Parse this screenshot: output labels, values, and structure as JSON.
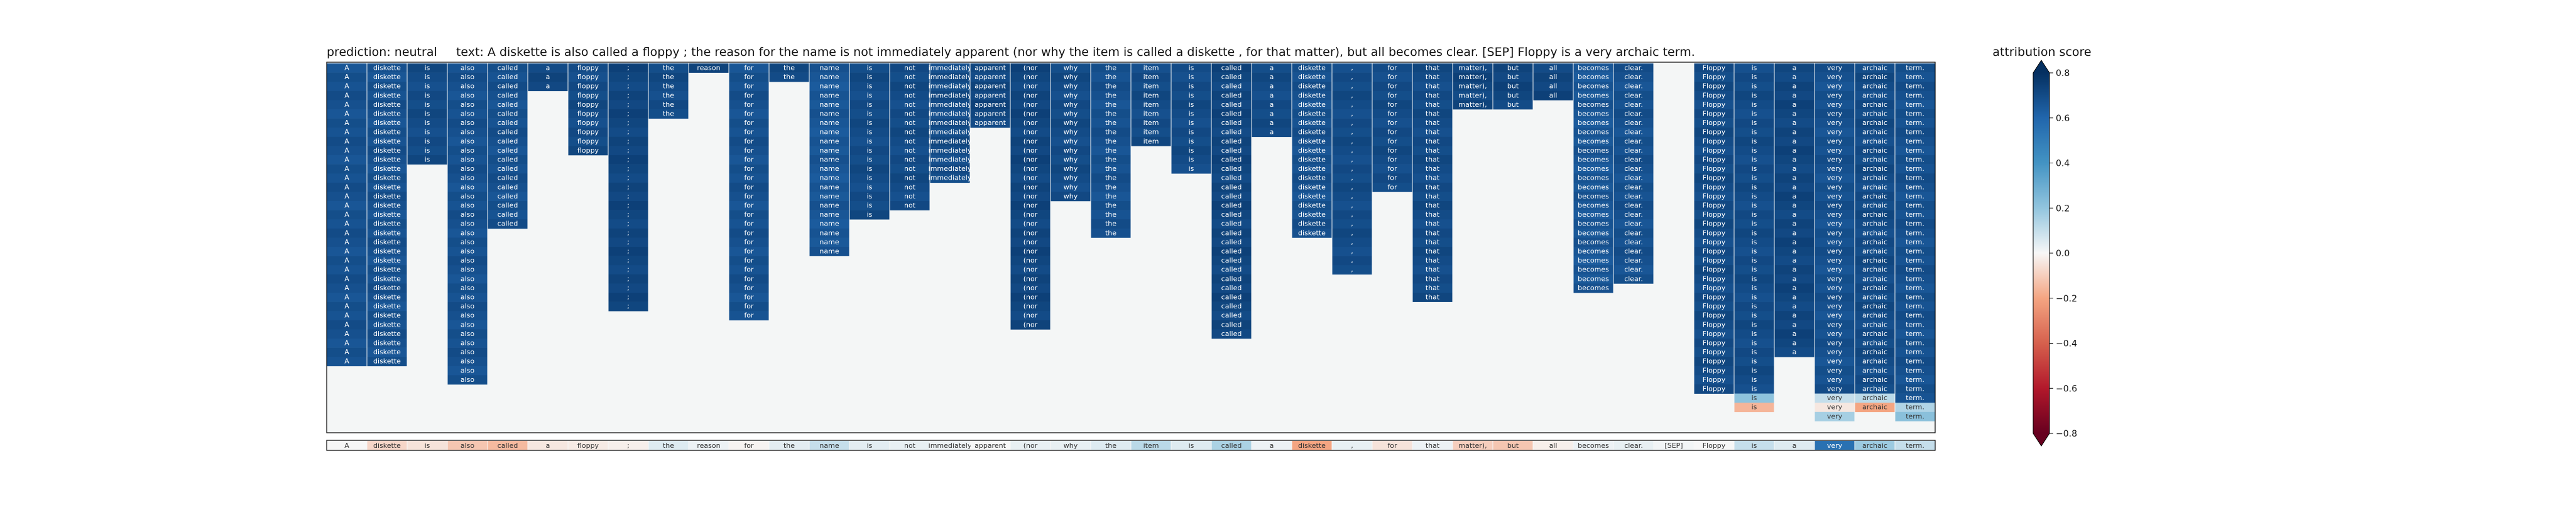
{
  "title": {
    "prediction_label": "prediction:",
    "prediction": "neutral",
    "text_label": "text:",
    "text": "A diskette is also called a floppy ; the reason for the name is not immediately apparent (nor why the item is called a diskette , for that matter), but all becomes clear. [SEP] Floppy is a very archaic term."
  },
  "colorbar": {
    "title": "attribution score",
    "ticks": [
      "0.8",
      "0.6",
      "0.4",
      "0.2",
      "0.0",
      "−0.2",
      "−0.4",
      "−0.6",
      "−0.8"
    ],
    "range": [
      -0.8,
      0.8
    ],
    "colormap": "RdBu",
    "negative_color": "#67001f",
    "neutral_color": "#f7f7f7",
    "positive_color": "#053061"
  },
  "chart_data": {
    "type": "heatmap",
    "tokens": [
      "A",
      "diskette",
      "is",
      "also",
      "called",
      "a",
      "floppy",
      ";",
      "the",
      "reason",
      "for",
      "the",
      "name",
      "is",
      "not",
      "immediately",
      "apparent",
      "(nor",
      "why",
      "the",
      "item",
      "is",
      "called",
      "a",
      "diskette",
      ",",
      "for",
      "that",
      "matter),",
      "but",
      "all",
      "becomes",
      "clear.",
      "[SEP]",
      "Floppy",
      "is",
      "a",
      "very",
      "archaic",
      "term."
    ],
    "matrix_background": "#f4f6f6",
    "columns": [
      {
        "token": "A",
        "cells": [
          {
            "r": 0,
            "n": 33,
            "v": 0.68
          }
        ]
      },
      {
        "token": "diskette",
        "cells": [
          {
            "r": 0,
            "n": 33,
            "v": 0.68
          }
        ]
      },
      {
        "token": "is",
        "cells": [
          {
            "r": 0,
            "n": 11,
            "v": 0.7
          }
        ]
      },
      {
        "token": "also",
        "cells": [
          {
            "r": 0,
            "n": 35,
            "v": 0.68
          }
        ]
      },
      {
        "token": "called",
        "cells": [
          {
            "r": 0,
            "n": 18,
            "v": 0.68
          }
        ]
      },
      {
        "token": "a",
        "cells": [
          {
            "r": 0,
            "n": 3,
            "v": 0.72
          }
        ]
      },
      {
        "token": "floppy",
        "cells": [
          {
            "r": 0,
            "n": 10,
            "v": 0.7
          }
        ]
      },
      {
        "token": ";",
        "cells": [
          {
            "r": 0,
            "n": 27,
            "v": 0.72
          }
        ]
      },
      {
        "token": "the",
        "cells": [
          {
            "r": 0,
            "n": 6,
            "v": 0.7
          }
        ]
      },
      {
        "token": "reason",
        "cells": [
          {
            "r": 0,
            "n": 1,
            "v": 0.72
          }
        ]
      },
      {
        "token": "for",
        "cells": [
          {
            "r": 0,
            "n": 28,
            "v": 0.68
          }
        ]
      },
      {
        "token": "the",
        "cells": [
          {
            "r": 0,
            "n": 2,
            "v": 0.72
          }
        ]
      },
      {
        "token": "name",
        "cells": [
          {
            "r": 0,
            "n": 21,
            "v": 0.66
          }
        ]
      },
      {
        "token": "is",
        "cells": [
          {
            "r": 0,
            "n": 17,
            "v": 0.7
          }
        ]
      },
      {
        "token": "not",
        "cells": [
          {
            "r": 0,
            "n": 16,
            "v": 0.7
          }
        ]
      },
      {
        "token": "immediately",
        "cells": [
          {
            "r": 0,
            "n": 13,
            "v": 0.7
          }
        ]
      },
      {
        "token": "apparent",
        "cells": [
          {
            "r": 0,
            "n": 7,
            "v": 0.72
          }
        ]
      },
      {
        "token": "(nor",
        "cells": [
          {
            "r": 0,
            "n": 29,
            "v": 0.72
          }
        ]
      },
      {
        "token": "why",
        "cells": [
          {
            "r": 0,
            "n": 15,
            "v": 0.7
          }
        ]
      },
      {
        "token": "the",
        "cells": [
          {
            "r": 0,
            "n": 19,
            "v": 0.68
          }
        ]
      },
      {
        "token": "item",
        "cells": [
          {
            "r": 0,
            "n": 9,
            "v": 0.7
          }
        ]
      },
      {
        "token": "is",
        "cells": [
          {
            "r": 0,
            "n": 12,
            "v": 0.7
          }
        ]
      },
      {
        "token": "called",
        "cells": [
          {
            "r": 0,
            "n": 30,
            "v": 0.72
          }
        ]
      },
      {
        "token": "a",
        "cells": [
          {
            "r": 0,
            "n": 8,
            "v": 0.7
          }
        ]
      },
      {
        "token": "diskette",
        "cells": [
          {
            "r": 0,
            "n": 19,
            "v": 0.68
          }
        ]
      },
      {
        "token": ",",
        "cells": [
          {
            "r": 0,
            "n": 23,
            "v": 0.7
          }
        ]
      },
      {
        "token": "for",
        "cells": [
          {
            "r": 0,
            "n": 14,
            "v": 0.7
          }
        ]
      },
      {
        "token": "that",
        "cells": [
          {
            "r": 0,
            "n": 26,
            "v": 0.7
          }
        ]
      },
      {
        "token": "matter),",
        "cells": [
          {
            "r": 0,
            "n": 5,
            "v": 0.72
          }
        ]
      },
      {
        "token": "but",
        "cells": [
          {
            "r": 0,
            "n": 5,
            "v": 0.72
          }
        ]
      },
      {
        "token": "all",
        "cells": [
          {
            "r": 0,
            "n": 4,
            "v": 0.72
          }
        ]
      },
      {
        "token": "becomes",
        "cells": [
          {
            "r": 0,
            "n": 25,
            "v": 0.66
          }
        ]
      },
      {
        "token": "clear.",
        "cells": [
          {
            "r": 0,
            "n": 24,
            "v": 0.68
          }
        ]
      },
      {
        "token": "[SEP]",
        "cells": []
      },
      {
        "token": "Floppy",
        "cells": [
          {
            "r": 0,
            "n": 36,
            "v": 0.7
          }
        ]
      },
      {
        "token": "is",
        "cells": [
          {
            "r": 0,
            "n": 36,
            "v": 0.7
          },
          {
            "r": 36,
            "n": 1,
            "v": 0.2
          },
          {
            "r": 37,
            "n": 1,
            "v": -0.15
          }
        ]
      },
      {
        "token": "a",
        "cells": [
          {
            "r": 0,
            "n": 32,
            "v": 0.72
          }
        ]
      },
      {
        "token": "very",
        "cells": [
          {
            "r": 0,
            "n": 36,
            "v": 0.68
          },
          {
            "r": 36,
            "n": 1,
            "v": 0.1
          },
          {
            "r": 37,
            "n": 1,
            "v": -0.02
          },
          {
            "r": 38,
            "n": 1,
            "v": 0.15
          }
        ]
      },
      {
        "token": "archaic",
        "cells": [
          {
            "r": 0,
            "n": 36,
            "v": 0.7
          },
          {
            "r": 36,
            "n": 1,
            "v": 0.1
          },
          {
            "r": 37,
            "n": 1,
            "v": -0.2
          }
        ]
      },
      {
        "token": "term.",
        "cells": [
          {
            "r": 0,
            "n": 37,
            "v": 0.68
          },
          {
            "r": 37,
            "n": 1,
            "v": 0.12
          },
          {
            "r": 38,
            "n": 1,
            "v": 0.22
          }
        ]
      }
    ],
    "summary_row": [
      0.0,
      -0.08,
      -0.05,
      -0.12,
      -0.15,
      -0.04,
      -0.03,
      -0.02,
      0.05,
      0.02,
      -0.01,
      0.04,
      0.1,
      0.04,
      0.03,
      0.02,
      0.0,
      0.03,
      0.03,
      0.05,
      0.12,
      0.05,
      0.15,
      0.02,
      -0.2,
      0.03,
      -0.05,
      0.02,
      -0.1,
      -0.12,
      -0.02,
      0.02,
      0.03,
      0.01,
      0.0,
      0.1,
      0.05,
      0.55,
      0.18,
      0.1
    ]
  }
}
